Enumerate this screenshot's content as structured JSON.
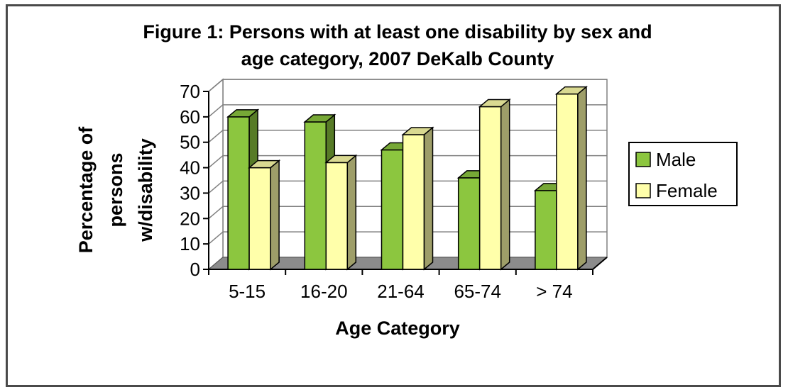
{
  "chart_data": {
    "type": "bar",
    "title_lines": [
      "Figure 1: Persons with at least one disability by sex and",
      "age category, 2007 DeKalb County"
    ],
    "xlabel": "Age Category",
    "ylabel_lines": [
      "Percentage of",
      "persons",
      "w/disability"
    ],
    "categories": [
      "5-15",
      "16-20",
      "21-64",
      "65-74",
      "> 74"
    ],
    "series": [
      {
        "name": "Male",
        "values": [
          60,
          58,
          47,
          36,
          31
        ],
        "color": "#8cc63f"
      },
      {
        "name": "Female",
        "values": [
          40,
          42,
          53,
          64,
          69
        ],
        "color": "#ffffaa"
      }
    ],
    "ylim": [
      0,
      70
    ],
    "yticks": [
      0,
      10,
      20,
      30,
      40,
      50,
      60,
      70
    ],
    "grid": true,
    "legend": "right"
  }
}
